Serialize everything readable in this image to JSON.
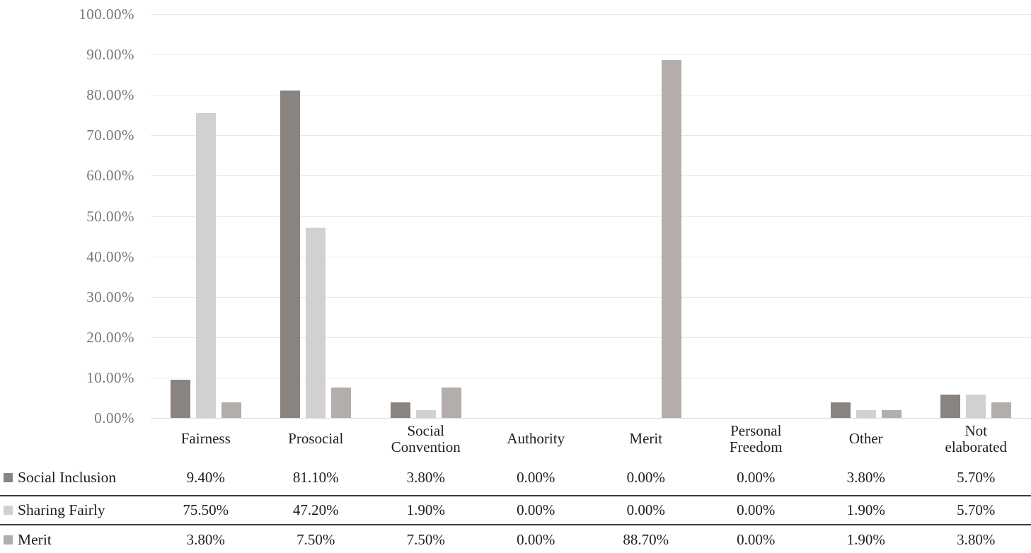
{
  "chart_data": {
    "type": "bar",
    "title": "",
    "xlabel": "",
    "ylabel": "",
    "categories": [
      "Fairness",
      "Prosocial",
      "Social Convention",
      "Authority",
      "Merit",
      "Personal Freedom",
      "Other",
      "Not elaborated"
    ],
    "series": [
      {
        "name": "Social Inclusion",
        "color": "#8a8480",
        "values": [
          9.4,
          81.1,
          3.8,
          0.0,
          0.0,
          0.0,
          3.8,
          5.7
        ]
      },
      {
        "name": "Sharing Fairly",
        "color": "#d3d1d0",
        "values": [
          75.5,
          47.2,
          1.9,
          0.0,
          0.0,
          0.0,
          1.9,
          5.7
        ]
      },
      {
        "name": "Merit",
        "color": "#b3aeab",
        "values": [
          3.8,
          7.5,
          7.5,
          0.0,
          88.7,
          0.0,
          1.9,
          3.8
        ]
      }
    ],
    "ylim": [
      0,
      100
    ],
    "ytick_labels": [
      "100.00%",
      "90.00%",
      "80.00%",
      "70.00%",
      "60.00%",
      "50.00%",
      "40.00%",
      "30.00%",
      "20.00%",
      "10.00%",
      "0.00%"
    ],
    "grid": true,
    "legend_position": "data-table-left"
  },
  "table": {
    "row_labels": [
      "Social Inclusion",
      "Sharing Fairly",
      "Merit"
    ],
    "rows": [
      [
        "9.40%",
        "81.10%",
        "3.80%",
        "0.00%",
        "0.00%",
        "0.00%",
        "3.80%",
        "5.70%"
      ],
      [
        "75.50%",
        "47.20%",
        "1.90%",
        "0.00%",
        "0.00%",
        "0.00%",
        "1.90%",
        "5.70%"
      ],
      [
        "3.80%",
        "7.50%",
        "7.50%",
        "0.00%",
        "88.70%",
        "0.00%",
        "1.90%",
        "3.80%"
      ]
    ]
  },
  "colors": {
    "background": "#ffffff",
    "gridline": "#e9e8e7",
    "axis_line": "#dcdbda",
    "ytick_text": "#7b7570",
    "body_text": "#211d1a",
    "table_border": "#3c3c3c",
    "series_social_inclusion": "#8a8480",
    "series_sharing_fairly": "#d3d1d0",
    "series_merit": "#b3aeab"
  }
}
